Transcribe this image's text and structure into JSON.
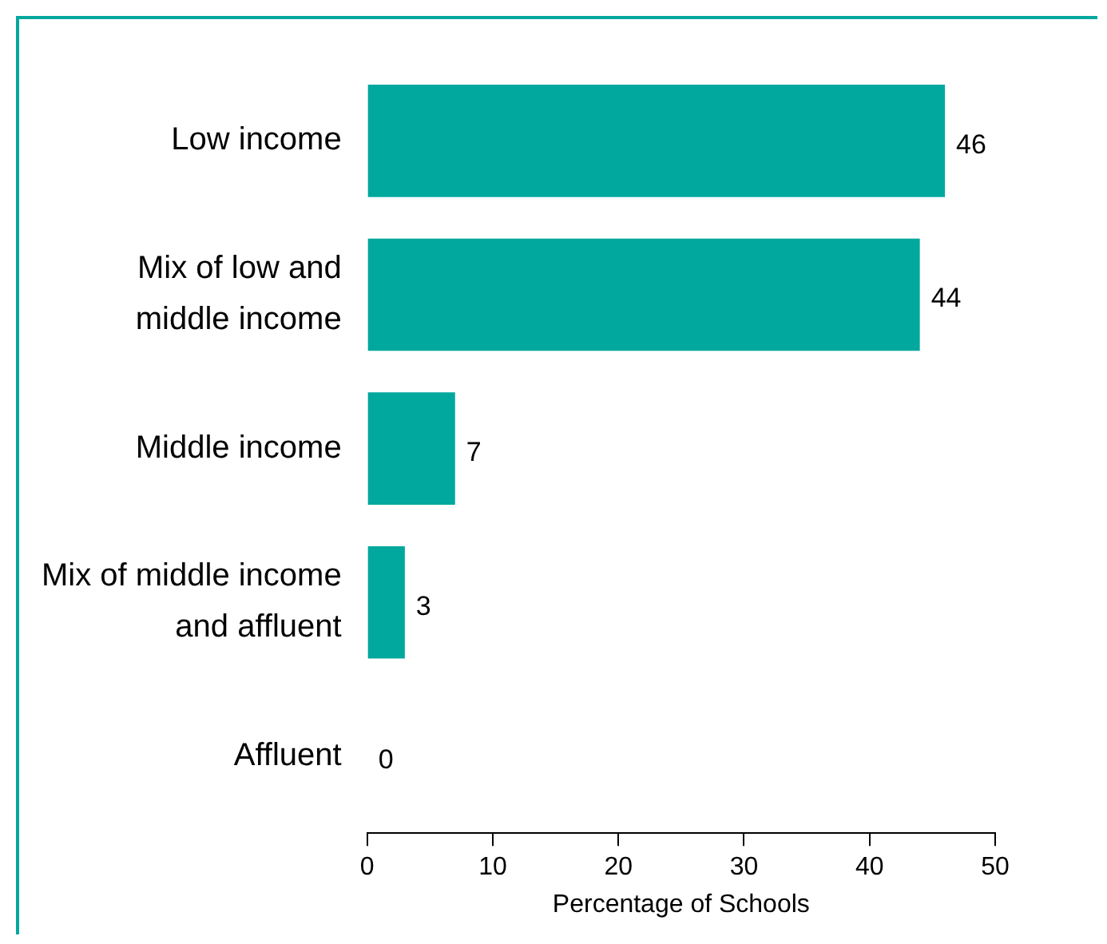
{
  "chart_data": {
    "type": "bar",
    "orientation": "horizontal",
    "categories": [
      "Low income",
      "Mix of low and middle income",
      "Middle income",
      "Mix of middle income and affluent",
      "Affluent"
    ],
    "values": [
      46,
      44,
      7,
      3,
      0
    ],
    "color": "#00a89d",
    "xlabel": "Percentage of Schools",
    "xlim": [
      0,
      50
    ],
    "xticks": [
      0,
      10,
      20,
      30,
      40,
      50
    ],
    "data_labels": true,
    "grid": false,
    "legend": false
  }
}
